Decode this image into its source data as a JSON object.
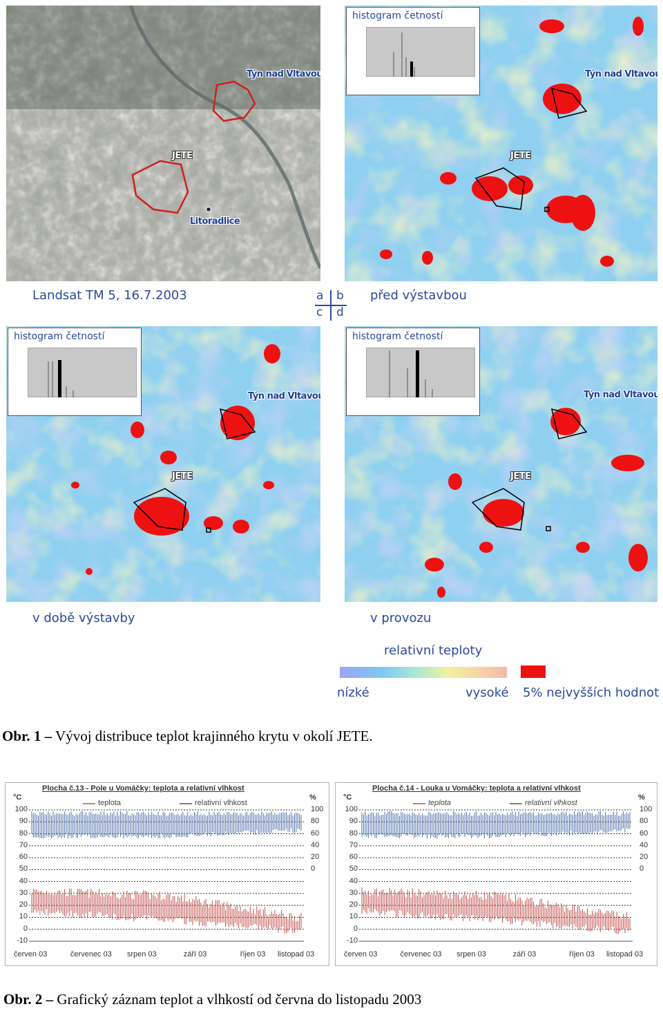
{
  "figure1": {
    "panel_labels": {
      "a": "Landsat TM 5, 16.7.2003",
      "b": "před výstavbou",
      "c": "v době výstavby",
      "d": "v provozu"
    },
    "grid_glyph": {
      "a": "a",
      "b": "b",
      "c": "c",
      "d": "d"
    },
    "places": {
      "tyn": "Týn nad Vltavou",
      "jete": "JETE",
      "litoradlice": "Litoradlice"
    },
    "histogram_title": "histogram četností",
    "legend": {
      "title": "relativní teploty",
      "low": "nízké",
      "high": "vysoké",
      "top5": "5% nejvyšších hodnot"
    },
    "caption": {
      "prefix": "Obr. 1 –",
      "text": " Vývoj distribuce teplot krajinného krytu v okolí  JETE."
    },
    "colors": {
      "hot": "#ee1111",
      "cool": "#6aa6f0",
      "mid": "#f2e890",
      "label": "#2a4a9c"
    }
  },
  "chart_data": [
    {
      "type": "line",
      "title": "Plocha č.13 - Pole u Vomáčky: teplota a relativní vlhkost",
      "legend": [
        "teplota",
        "relativní vlhkost"
      ],
      "y_left_unit": "°C",
      "y_right_unit": "%",
      "y_left_ticks": [
        "100",
        "90",
        "80",
        "70",
        "60",
        "50",
        "40",
        "30",
        "20",
        "10",
        "0",
        "-10"
      ],
      "y_right_ticks": [
        "100",
        "80",
        "60",
        "40",
        "20",
        "0"
      ],
      "x_labels": [
        "červen 03",
        "červenec 03",
        "srpen 03",
        "září 03",
        "říjen 03",
        "listopad 03"
      ],
      "ylim": [
        -10,
        100
      ],
      "series": [
        {
          "name": "teplota",
          "color": "#c0504d",
          "range_low": [
            12,
            5,
            -5
          ],
          "range_high": [
            32,
            28,
            10
          ]
        },
        {
          "name": "relativní vlhkost",
          "color": "#4f6fa8",
          "range_low": [
            60,
            60,
            70
          ],
          "range_high": [
            90,
            90,
            90
          ]
        }
      ]
    },
    {
      "type": "line",
      "title": "Plocha č.14 - Louka u Vomáčky: teplota a relativní vlhkost",
      "legend": [
        "teplota",
        "relativní vlhkost"
      ],
      "y_left_unit": "°C",
      "y_right_unit": "%",
      "y_left_ticks": [
        "100",
        "90",
        "80",
        "70",
        "60",
        "50",
        "40",
        "30",
        "20",
        "10",
        "0",
        "-10"
      ],
      "y_right_ticks": [
        "100",
        "80",
        "60",
        "40",
        "20",
        "0"
      ],
      "x_labels": [
        "červen 03",
        "červenec 03",
        "srpen 03",
        "září 03",
        "říjen 03",
        "listopad 03"
      ],
      "ylim": [
        -10,
        100
      ],
      "series": [
        {
          "name": "teplota",
          "color": "#c0504d",
          "range_low": [
            12,
            5,
            -5
          ],
          "range_high": [
            32,
            28,
            10
          ]
        },
        {
          "name": "relativní vlhkost",
          "color": "#4f6fa8",
          "range_low": [
            60,
            60,
            70
          ],
          "range_high": [
            90,
            90,
            90
          ]
        }
      ]
    }
  ],
  "figure2": {
    "caption": {
      "prefix": "Obr. 2 –",
      "text": " Grafický záznam teplot a vlhkostí od června do listopadu 2003"
    }
  }
}
